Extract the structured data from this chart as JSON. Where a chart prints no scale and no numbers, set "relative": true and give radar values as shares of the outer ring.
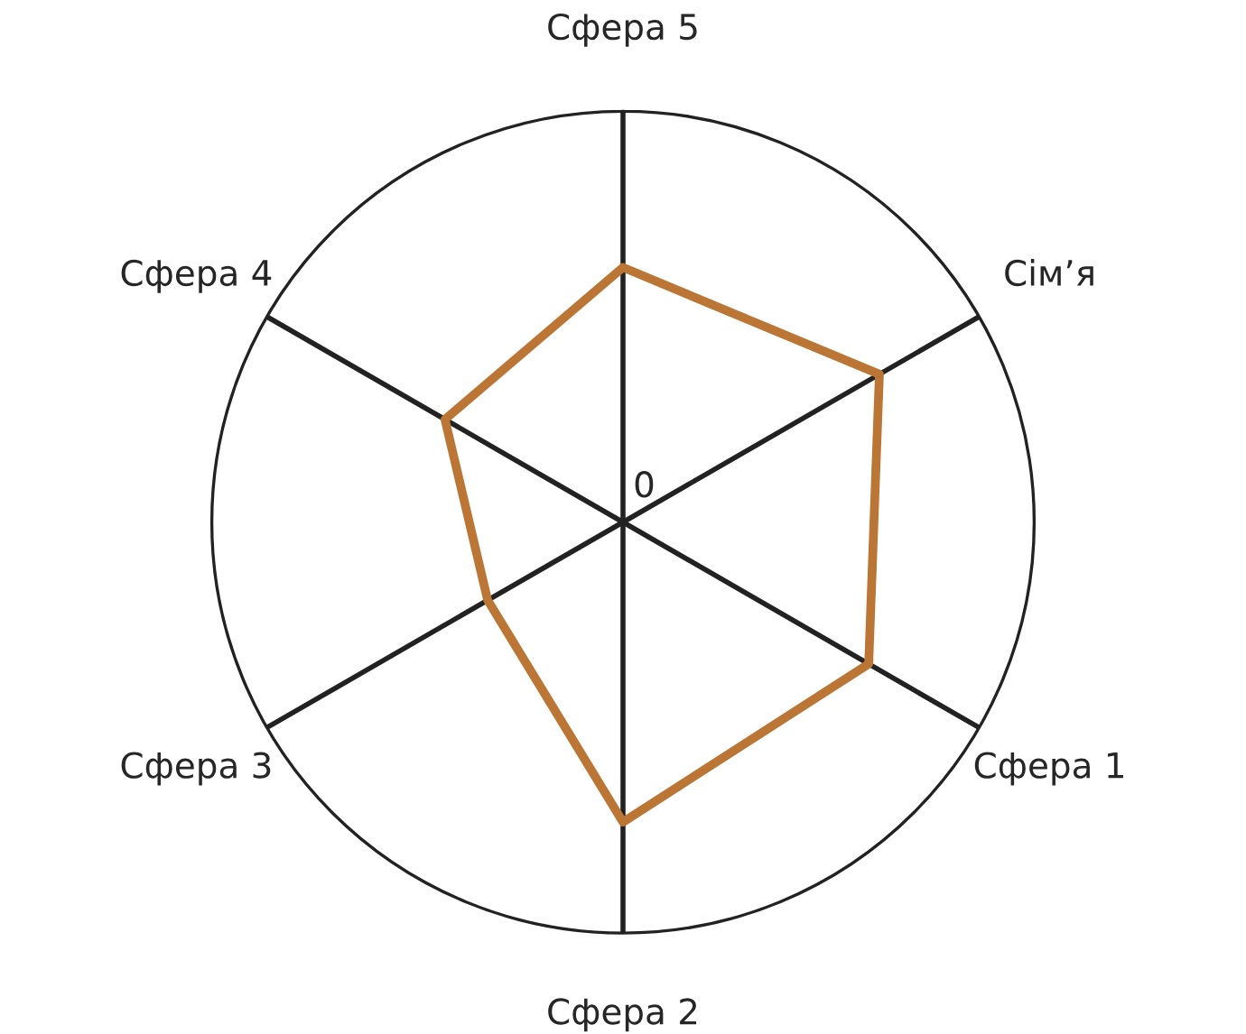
{
  "chart_data": {
    "type": "radar",
    "relative": true,
    "categories": [
      "Сфера 5",
      "Сім’я",
      "Сфера 1",
      "Сфера 2",
      "Сфера 3",
      "Сфера 4"
    ],
    "series": [
      {
        "color": "#bb7535",
        "values": [
          0.62,
          0.72,
          0.69,
          0.73,
          0.38,
          0.5
        ]
      }
    ],
    "annotations": [
      "0"
    ],
    "grid": "x",
    "marker": "none",
    "line_style": "solid"
  }
}
